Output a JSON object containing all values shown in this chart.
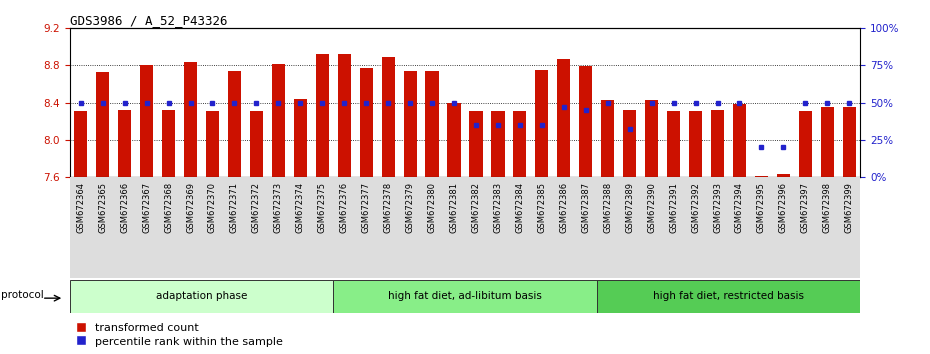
{
  "title": "GDS3986 / A_52_P43326",
  "samples": [
    "GSM672364",
    "GSM672365",
    "GSM672366",
    "GSM672367",
    "GSM672368",
    "GSM672369",
    "GSM672370",
    "GSM672371",
    "GSM672372",
    "GSM672373",
    "GSM672374",
    "GSM672375",
    "GSM672376",
    "GSM672377",
    "GSM672378",
    "GSM672379",
    "GSM672380",
    "GSM672381",
    "GSM672382",
    "GSM672383",
    "GSM672384",
    "GSM672385",
    "GSM672386",
    "GSM672387",
    "GSM672388",
    "GSM672389",
    "GSM672390",
    "GSM672391",
    "GSM672392",
    "GSM672393",
    "GSM672394",
    "GSM672395",
    "GSM672396",
    "GSM672397",
    "GSM672398",
    "GSM672399"
  ],
  "transformed_count": [
    8.31,
    8.73,
    8.32,
    8.8,
    8.32,
    8.84,
    8.31,
    8.74,
    8.31,
    8.82,
    8.44,
    8.92,
    8.92,
    8.77,
    8.89,
    8.74,
    8.74,
    8.4,
    8.31,
    8.31,
    8.31,
    8.75,
    8.87,
    8.79,
    8.43,
    8.32,
    8.43,
    8.31,
    8.31,
    8.32,
    8.39,
    7.61,
    7.63,
    8.31,
    8.35,
    8.35
  ],
  "percentile_rank": [
    50,
    50,
    50,
    50,
    50,
    50,
    50,
    50,
    50,
    50,
    50,
    50,
    50,
    50,
    50,
    50,
    50,
    50,
    35,
    35,
    35,
    35,
    47,
    45,
    50,
    32,
    50,
    50,
    50,
    50,
    50,
    20,
    20,
    50,
    50,
    50
  ],
  "groups": [
    {
      "label": "adaptation phase",
      "start": 0,
      "end": 12,
      "color": "#ccffcc"
    },
    {
      "label": "high fat diet, ad-libitum basis",
      "start": 12,
      "end": 24,
      "color": "#88ee88"
    },
    {
      "label": "high fat diet, restricted basis",
      "start": 24,
      "end": 36,
      "color": "#55cc55"
    }
  ],
  "ymin": 7.6,
  "ymax": 9.2,
  "bar_color": "#cc1100",
  "percentile_color": "#2222cc",
  "yticks": [
    7.6,
    8.0,
    8.4,
    8.8,
    9.2
  ],
  "right_yticks": [
    0,
    25,
    50,
    75,
    100
  ],
  "right_yticklabels": [
    "0%",
    "25%",
    "50%",
    "75%",
    "100%"
  ]
}
